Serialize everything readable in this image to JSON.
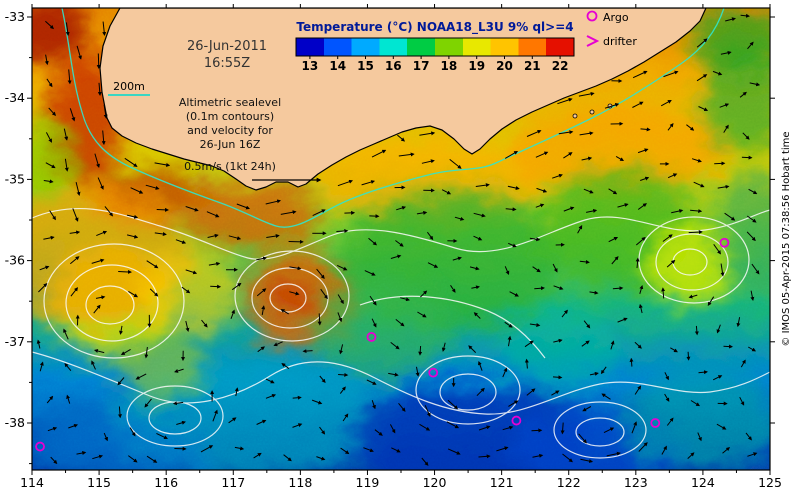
{
  "colorbar": {
    "title": "Temperature (°C) NOAA18_L3U 9% ql>=4",
    "tick_labels": [
      "13",
      "14",
      "15",
      "16",
      "17",
      "18",
      "19",
      "20",
      "21",
      "22"
    ],
    "segment_colors": [
      "#0000c8",
      "#0055ff",
      "#00aaff",
      "#00e6d2",
      "#00cc44",
      "#7fd400",
      "#e8e800",
      "#ffc400",
      "#ff7700",
      "#e51000"
    ]
  },
  "legend": {
    "argo_label": "Argo",
    "drifter_label": "drifter",
    "marker_color": "#e600d2"
  },
  "annotations": {
    "datetime_line1": "26-Jun-2011",
    "datetime_line2": "16:55Z",
    "isobath_label": "200m",
    "info_lines": [
      "Altimetric sealevel",
      "(0.1m contours)",
      "and velocity for",
      "26-Jun 16Z"
    ],
    "scale_label": "0.5m/s (1kt 24h)"
  },
  "credit": "© IMOS 05-Apr-2015 07:38:56 Hobart time",
  "axes": {
    "lon_min": 114,
    "lon_max": 125,
    "x_tick_labels": [
      "114",
      "115",
      "116",
      "117",
      "118",
      "119",
      "120",
      "121",
      "122",
      "123",
      "124",
      "125"
    ],
    "y_tick_labels": [
      "-33",
      "-34",
      "-35",
      "-36",
      "-37",
      "-38"
    ]
  },
  "chart_data": {
    "type": "heatmap",
    "title": "Sea surface temperature with altimetric sealevel contours and velocity vectors",
    "product": "NOAA18_L3U 9% ql>=4",
    "datetime": "26-Jun-2011 16:55Z",
    "velocity_valid_time": "26-Jun 16Z",
    "sealevel_contour_interval_m": 0.1,
    "velocity_scale": "0.5m/s (1kt 24h)",
    "temperature_ticks_c": [
      13,
      14,
      15,
      16,
      17,
      18,
      19,
      20,
      21,
      22
    ],
    "lon_range": [
      114,
      125
    ],
    "lat_range": [
      -38.6,
      -32.9
    ],
    "argo_floats": [
      {
        "lon": 119.06,
        "lat": -36.94
      },
      {
        "lon": 119.98,
        "lat": -37.38
      },
      {
        "lon": 121.22,
        "lat": -37.97
      },
      {
        "lon": 123.29,
        "lat": -38.0
      },
      {
        "lon": 124.32,
        "lat": -35.78
      },
      {
        "lon": 114.12,
        "lat": -38.29
      }
    ],
    "eddies": [
      {
        "lon": 115.16,
        "lat": -36.55,
        "r_deg": 1.0,
        "spin": 1
      },
      {
        "lon": 117.82,
        "lat": -36.46,
        "r_deg": 0.8,
        "spin": 1
      },
      {
        "lon": 120.5,
        "lat": -37.62,
        "r_deg": 0.75,
        "spin": -1
      },
      {
        "lon": 123.81,
        "lat": -36.02,
        "r_deg": 0.8,
        "spin": 1
      },
      {
        "lon": 122.47,
        "lat": -38.11,
        "r_deg": 0.6,
        "spin": -1
      },
      {
        "lon": 116.13,
        "lat": -37.94,
        "r_deg": 0.65,
        "spin": -1
      }
    ],
    "sst_features": [
      {
        "lon": 114.19,
        "lat": -33.16,
        "rx": 0.67,
        "ry": 0.43,
        "c": "#a81e00",
        "o": 0.9
      },
      {
        "lon": 114.79,
        "lat": -34.27,
        "rx": 0.57,
        "ry": 0.86,
        "c": "#c83200",
        "o": 0.85
      },
      {
        "lon": 115.76,
        "lat": -35.19,
        "rx": 0.89,
        "ry": 0.34,
        "c": "#c84400",
        "o": 0.8
      },
      {
        "lon": 117.25,
        "lat": -35.44,
        "rx": 1.04,
        "ry": 0.43,
        "c": "#d85800",
        "o": 0.75
      },
      {
        "lon": 117.99,
        "lat": -36.48,
        "rx": 0.82,
        "ry": 0.62,
        "c": "#e06000",
        "o": 0.8
      },
      {
        "lon": 115.16,
        "lat": -36.48,
        "rx": 0.89,
        "ry": 0.68,
        "c": "#d8dc00",
        "o": 0.85
      },
      {
        "lon": 114.86,
        "lat": -35.93,
        "rx": 1.49,
        "ry": 0.86,
        "c": "#ff9900",
        "o": 0.65
      },
      {
        "lon": 119.93,
        "lat": -35.01,
        "rx": 1.79,
        "ry": 0.55,
        "c": "#ffaa00",
        "o": 0.7
      },
      {
        "lon": 122.76,
        "lat": -34.64,
        "rx": 1.64,
        "ry": 0.55,
        "c": "#ff9900",
        "o": 0.65
      },
      {
        "lon": 120.23,
        "lat": -35.99,
        "rx": 1.64,
        "ry": 0.86,
        "c": "#2fae2f",
        "o": 0.75
      },
      {
        "lon": 119.19,
        "lat": -36.85,
        "rx": 1.04,
        "ry": 0.62,
        "c": "#35b24a",
        "o": 0.6
      },
      {
        "lon": 122.76,
        "lat": -35.62,
        "rx": 1.19,
        "ry": 0.74,
        "c": "#3cb41e",
        "o": 0.7
      },
      {
        "lon": 123.81,
        "lat": -36.05,
        "rx": 0.67,
        "ry": 0.49,
        "c": "#c8e600",
        "o": 0.85
      },
      {
        "lon": 117.25,
        "lat": -37.96,
        "rx": 2.09,
        "ry": 0.74,
        "c": "#00a8bc",
        "o": 0.6
      },
      {
        "lon": 120.53,
        "lat": -38.21,
        "rx": 1.79,
        "ry": 0.68,
        "c": "#0030b4",
        "o": 0.8
      },
      {
        "lon": 122.47,
        "lat": -38.33,
        "rx": 1.34,
        "ry": 0.49,
        "c": "#0044cc",
        "o": 0.7
      },
      {
        "lon": 115.31,
        "lat": -38.39,
        "rx": 1.34,
        "ry": 0.43,
        "c": "#0072cc",
        "o": 0.6
      },
      {
        "lon": 123.96,
        "lat": -37.96,
        "rx": 1.19,
        "ry": 0.62,
        "c": "#00a0a0",
        "o": 0.6
      },
      {
        "lon": 114.19,
        "lat": -34.76,
        "rx": 0.45,
        "ry": 0.49,
        "c": "#7fc800",
        "o": 0.65
      },
      {
        "lon": 116.36,
        "lat": -36.36,
        "rx": 0.75,
        "ry": 0.55,
        "c": "#ffcc00",
        "o": 0.6
      },
      {
        "lon": 115.91,
        "lat": -37.29,
        "rx": 0.67,
        "ry": 0.43,
        "c": "#b4d200",
        "o": 0.5
      },
      {
        "lon": 124.63,
        "lat": -34.02,
        "rx": 0.67,
        "ry": 0.68,
        "c": "#2faa2f",
        "o": 0.7
      },
      {
        "lon": 121.87,
        "lat": -37.1,
        "rx": 0.89,
        "ry": 0.49,
        "c": "#00b89b",
        "o": 0.5
      },
      {
        "lon": 124.55,
        "lat": -33.28,
        "rx": 0.75,
        "ry": 0.43,
        "c": "#22a022",
        "o": 0.75
      },
      {
        "lon": 124.78,
        "lat": -35.62,
        "rx": 0.6,
        "ry": 0.74,
        "c": "#20a060",
        "o": 0.5
      },
      {
        "lon": 117.85,
        "lat": -36.42,
        "rx": 0.33,
        "ry": 0.22,
        "c": "#c83c00",
        "o": 0.85
      }
    ]
  }
}
